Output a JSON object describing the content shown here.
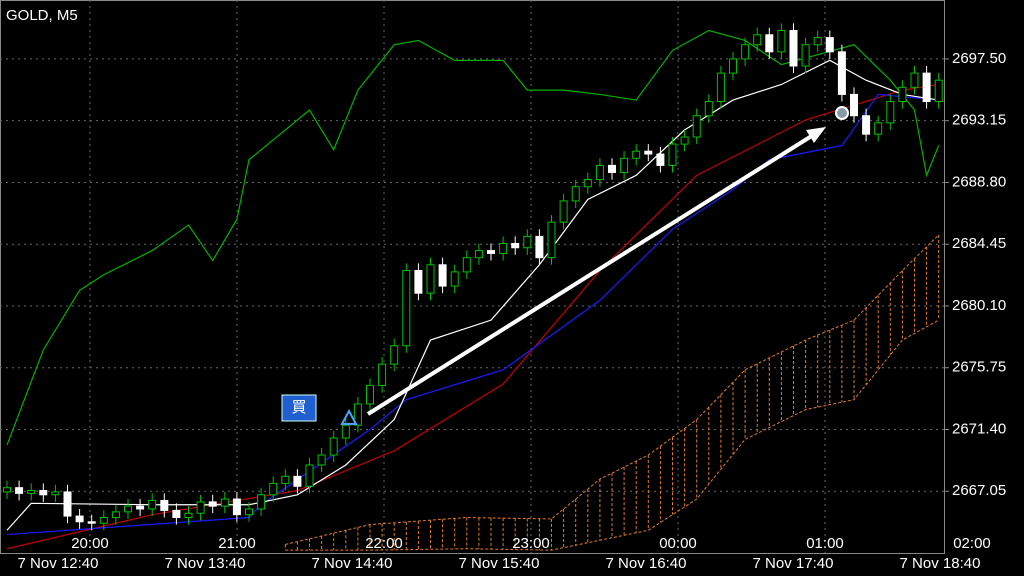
{
  "chart_data": {
    "type": "candlestick",
    "title": "GOLD, M5",
    "buy_label": "買",
    "ylim": [
      2662.7,
      2701.65
    ],
    "yticks": [
      {
        "value": 2697.5,
        "label": "2697.50"
      },
      2693.15,
      {
        "value": 2688.8,
        "label": "2688.80"
      },
      2684.45,
      {
        "value": 2680.1,
        "label": "2680.10"
      },
      2675.75,
      {
        "value": 2671.4,
        "label": "2671.40"
      },
      2667.05
    ],
    "grid": true,
    "time_labels_upper": [
      "20:00",
      "21:00",
      "22:00",
      "23:00",
      "00:00",
      "01:00",
      "02:00"
    ],
    "time_labels_lower": [
      "7 Nov 12:40",
      "7 Nov 13:40",
      "7 Nov 14:40",
      "7 Nov 15:40",
      "7 Nov 16:40",
      "7 Nov 17:40",
      "7 Nov 18:40"
    ],
    "up_color": "#00c000",
    "down_color": "#ffffff",
    "candles": {
      "open": [
        2667.0,
        2667.3,
        2666.9,
        2667.1,
        2666.8,
        2667.0,
        2665.3,
        2664.9,
        2664.8,
        2665.2,
        2665.6,
        2666.0,
        2665.8,
        2666.4,
        2665.7,
        2665.2,
        2665.5,
        2666.3,
        2666.0,
        2666.5,
        2665.4,
        2665.8,
        2666.8,
        2667.6,
        2668.1,
        2667.4,
        2668.9,
        2669.6,
        2670.8,
        2671.7,
        2673.2,
        2674.5,
        2676.0,
        2677.3,
        2682.6,
        2681.0,
        2683.0,
        2681.5,
        2682.5,
        2683.5,
        2684.0,
        2683.8,
        2684.5,
        2684.2,
        2685.0,
        2683.5,
        2686.0,
        2687.5,
        2688.5,
        2689.0,
        2690.0,
        2689.5,
        2690.5,
        2691.0,
        2690.8,
        2690.0,
        2691.5,
        2692.0,
        2693.5,
        2694.5,
        2696.5,
        2697.5,
        2698.5,
        2699.2,
        2698.0,
        2699.5,
        2697.0,
        2698.5,
        2699.0,
        2698.0,
        2695.0,
        2693.5,
        2692.2,
        2693.0,
        2694.5,
        2695.5,
        2696.5,
        2694.5
      ],
      "high": [
        2667.8,
        2667.8,
        2667.6,
        2667.6,
        2667.5,
        2667.5,
        2665.8,
        2665.4,
        2665.7,
        2666.1,
        2666.5,
        2666.5,
        2666.9,
        2666.9,
        2666.2,
        2666.0,
        2666.8,
        2666.8,
        2667.0,
        2667.0,
        2666.3,
        2667.3,
        2668.1,
        2668.6,
        2668.6,
        2669.4,
        2670.1,
        2671.3,
        2672.2,
        2673.7,
        2675.0,
        2676.5,
        2677.8,
        2683.1,
        2683.1,
        2683.5,
        2683.5,
        2683.0,
        2684.0,
        2684.5,
        2684.5,
        2685.0,
        2685.0,
        2685.5,
        2685.5,
        2686.5,
        2688.0,
        2689.0,
        2689.5,
        2690.5,
        2690.5,
        2691.0,
        2691.5,
        2691.5,
        2691.3,
        2692.0,
        2692.5,
        2694.0,
        2695.0,
        2697.0,
        2698.0,
        2699.0,
        2699.7,
        2699.7,
        2700.0,
        2700.0,
        2699.0,
        2699.5,
        2699.5,
        2698.5,
        2695.5,
        2694.0,
        2693.5,
        2695.0,
        2696.0,
        2697.0,
        2697.0,
        2696.5
      ],
      "low": [
        2666.5,
        2666.4,
        2666.4,
        2666.3,
        2666.3,
        2664.8,
        2664.4,
        2664.3,
        2664.3,
        2664.7,
        2665.1,
        2665.3,
        2665.3,
        2665.2,
        2664.7,
        2664.7,
        2665.0,
        2665.5,
        2665.5,
        2664.9,
        2664.9,
        2665.3,
        2666.3,
        2667.1,
        2666.9,
        2666.9,
        2668.4,
        2669.1,
        2670.3,
        2671.2,
        2672.7,
        2674.0,
        2675.5,
        2676.8,
        2680.5,
        2680.5,
        2681.0,
        2681.0,
        2682.0,
        2683.0,
        2683.3,
        2683.3,
        2683.7,
        2683.7,
        2683.0,
        2683.0,
        2685.5,
        2687.0,
        2688.0,
        2688.5,
        2689.0,
        2689.0,
        2690.0,
        2690.3,
        2689.5,
        2689.5,
        2691.0,
        2691.5,
        2693.0,
        2694.0,
        2696.0,
        2697.0,
        2698.0,
        2697.5,
        2697.5,
        2696.5,
        2696.5,
        2698.0,
        2697.5,
        2694.5,
        2693.0,
        2691.7,
        2691.7,
        2692.5,
        2694.0,
        2695.0,
        2694.0,
        2694.0
      ],
      "close": [
        2667.3,
        2666.9,
        2667.1,
        2666.8,
        2667.0,
        2665.3,
        2664.9,
        2664.8,
        2665.2,
        2665.6,
        2666.0,
        2665.8,
        2666.4,
        2665.7,
        2665.2,
        2665.5,
        2666.3,
        2666.0,
        2666.5,
        2665.4,
        2665.8,
        2666.8,
        2667.6,
        2668.1,
        2667.4,
        2668.9,
        2669.6,
        2670.8,
        2671.7,
        2673.2,
        2674.5,
        2676.0,
        2677.3,
        2682.6,
        2681.0,
        2683.0,
        2681.5,
        2682.5,
        2683.5,
        2684.0,
        2683.8,
        2684.5,
        2684.2,
        2685.0,
        2683.5,
        2686.0,
        2687.5,
        2688.5,
        2689.0,
        2690.0,
        2689.5,
        2690.5,
        2691.0,
        2690.8,
        2690.0,
        2691.5,
        2692.0,
        2693.5,
        2694.5,
        2696.5,
        2697.5,
        2698.5,
        2699.2,
        2698.0,
        2699.5,
        2697.0,
        2698.5,
        2699.0,
        2698.0,
        2695.0,
        2693.5,
        2692.2,
        2693.0,
        2694.5,
        2695.5,
        2696.5,
        2694.5,
        2696.0
      ]
    },
    "series": [
      {
        "color": "#00b000",
        "x": [
          0,
          3,
          6,
          8,
          12,
          15,
          17,
          19,
          20,
          25,
          27,
          29,
          32,
          34,
          37,
          41,
          43,
          46,
          49,
          52,
          55,
          58,
          61,
          64,
          67,
          70,
          73,
          75,
          76,
          77
        ],
        "values": [
          2670.3,
          2677.0,
          2681.2,
          2682.3,
          2684.0,
          2685.8,
          2683.3,
          2686.2,
          2690.4,
          2693.9,
          2691.1,
          2695.3,
          2698.5,
          2698.8,
          2697.4,
          2697.4,
          2695.3,
          2695.3,
          2695.0,
          2694.6,
          2698.1,
          2699.5,
          2698.8,
          2697.1,
          2697.8,
          2698.5,
          2696.0,
          2693.9,
          2689.3,
          2691.4
        ]
      },
      {
        "color": "#c00000",
        "x": [
          0,
          12,
          24,
          32,
          41,
          49,
          57,
          66,
          74,
          77
        ],
        "values": [
          2663.0,
          2665.4,
          2667.1,
          2669.9,
          2674.6,
          2682.6,
          2689.3,
          2693.2,
          2695.3,
          2695.7
        ]
      },
      {
        "color": "#1a1aff",
        "x": [
          0,
          20,
          21,
          30,
          33,
          41,
          49,
          55,
          60,
          63,
          69,
          72,
          77
        ],
        "values": [
          2664.0,
          2665.2,
          2666.1,
          2671.4,
          2673.5,
          2675.6,
          2680.5,
          2685.5,
          2688.3,
          2690.4,
          2691.4,
          2695.0,
          2694.6
        ]
      },
      {
        "color": "#ffffff",
        "x": [
          0,
          2,
          12,
          20,
          24,
          28,
          32,
          35,
          40,
          44,
          48,
          52,
          56,
          60,
          64,
          68,
          71,
          74,
          77
        ],
        "values": [
          2664.3,
          2666.2,
          2666.1,
          2666.1,
          2666.8,
          2668.9,
          2672.1,
          2677.7,
          2679.1,
          2683.0,
          2687.6,
          2689.3,
          2692.5,
          2694.6,
          2695.7,
          2697.4,
          2696.0,
          2695.0,
          2694.6
        ]
      }
    ],
    "cloud": {
      "color": "#e07b2a",
      "x": [
        23,
        30,
        38,
        45,
        49,
        53,
        57,
        61,
        66,
        70,
        74,
        77
      ],
      "upper": [
        2663.3,
        2664.7,
        2665.2,
        2665.1,
        2667.9,
        2669.6,
        2672.1,
        2675.6,
        2677.7,
        2679.1,
        2682.6,
        2685.1
      ],
      "lower": [
        2662.9,
        2662.9,
        2663.0,
        2662.9,
        2663.6,
        2664.3,
        2666.5,
        2670.7,
        2672.8,
        2673.5,
        2677.7,
        2679.1
      ]
    }
  }
}
